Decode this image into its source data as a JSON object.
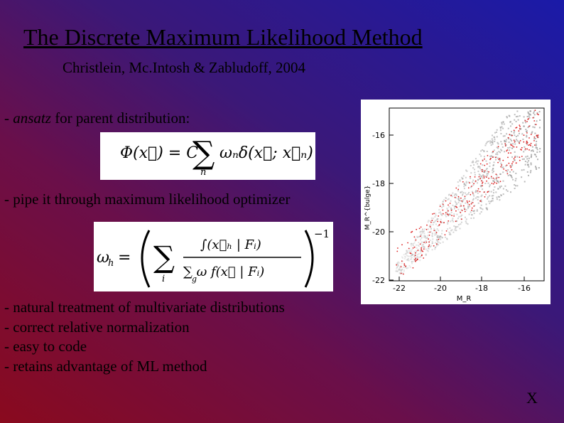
{
  "slide": {
    "title": "The Discrete Maximum Likelihood Method",
    "authors": "Christlein, Mc.Intosh & Zabludoff, 2004",
    "line1_prefix": "- ",
    "line1_italic": "ansatz",
    "line1_rest": " for parent distribution:",
    "line2": "- pipe it through maximum likelihood optimizer",
    "bullets": [
      "- natural treatment of multivariate distributions",
      "- correct relative normalization",
      "- easy to code",
      "- retains advantage of ML method"
    ],
    "corner_mark": "X"
  },
  "equations": {
    "phi": {
      "lhs": "Φ(x⃗) = C",
      "sum_index": "n",
      "rhs": "ωₙδ(x⃗; x⃗ₙ)"
    },
    "omega": {
      "lhs": "ω_h =",
      "sum_index": "i",
      "sum_index_inner": "g",
      "exponent": "−1"
    }
  },
  "figure": {
    "y_ticks": [
      "-16",
      "-18",
      "-20",
      "-22"
    ],
    "x_ticks": [
      "-22",
      "-20",
      "-18",
      "-16"
    ],
    "y_label": "M_R^{bulge}",
    "x_label": "M_R",
    "colors": {
      "points_red": "#dd2222",
      "density_gray": "#888888"
    }
  }
}
